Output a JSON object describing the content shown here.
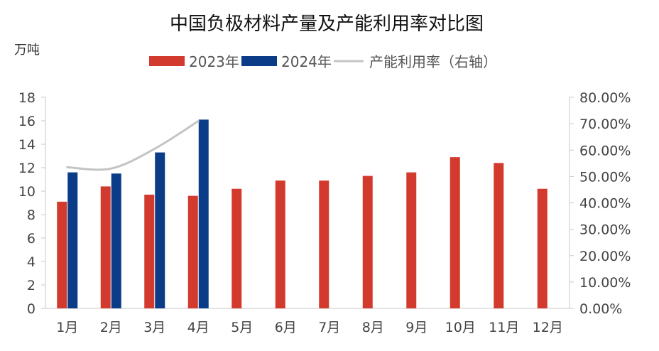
{
  "chart_data": {
    "type": "bar",
    "title": "中国负极材料产量及产能利用率对比图",
    "y_unit": "万吨",
    "categories": [
      "1月",
      "2月",
      "3月",
      "4月",
      "5月",
      "6月",
      "7月",
      "8月",
      "9月",
      "10月",
      "11月",
      "12月"
    ],
    "series": [
      {
        "name": "2023年",
        "type": "bar",
        "axis": "left",
        "color": "#d23a2e",
        "values": [
          9.1,
          10.4,
          9.7,
          9.6,
          10.2,
          10.9,
          10.9,
          11.3,
          11.6,
          12.9,
          12.4,
          10.2
        ]
      },
      {
        "name": "2024年",
        "type": "bar",
        "axis": "left",
        "color": "#0b3c88",
        "values": [
          11.6,
          11.5,
          13.3,
          16.1,
          null,
          null,
          null,
          null,
          null,
          null,
          null,
          null
        ]
      },
      {
        "name": "产能利用率（右轴）",
        "type": "line",
        "axis": "right",
        "color": "#c4c4c4",
        "values": [
          53.5,
          53.0,
          60.5,
          71.0,
          null,
          null,
          null,
          null,
          null,
          null,
          null,
          null
        ]
      }
    ],
    "y_left": {
      "min": 0,
      "max": 18,
      "ticks": [
        "0",
        "2",
        "4",
        "6",
        "8",
        "10",
        "12",
        "14",
        "16",
        "18"
      ]
    },
    "y_right": {
      "min": 0,
      "max": 80,
      "ticks": [
        "0.00%",
        "10.00%",
        "20.00%",
        "30.00%",
        "40.00%",
        "50.00%",
        "60.00%",
        "70.00%",
        "80.00%"
      ]
    },
    "legend_position": "top-center",
    "grid": false
  }
}
